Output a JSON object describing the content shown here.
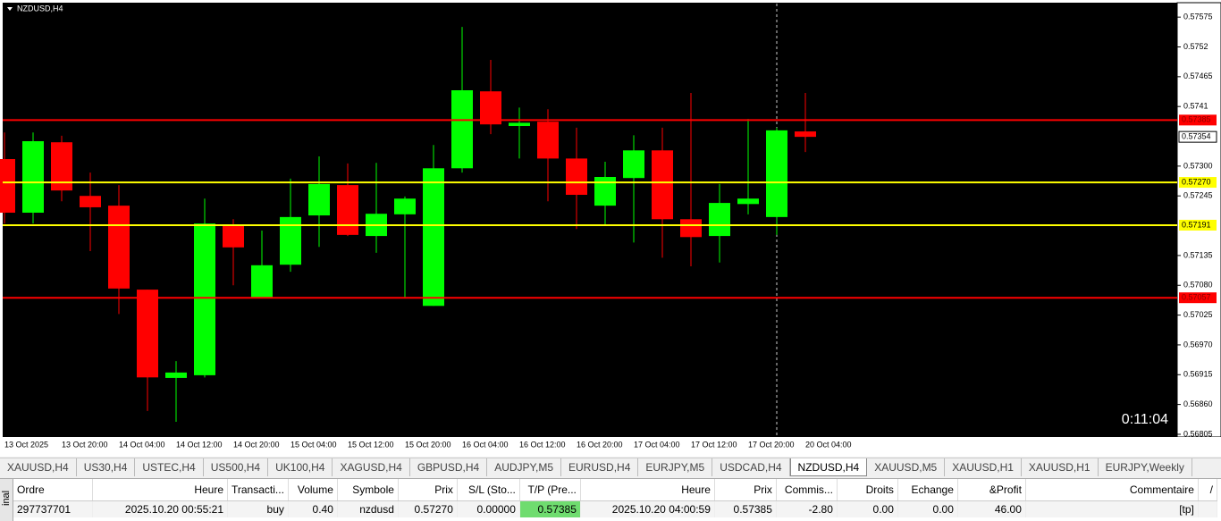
{
  "chart_data": {
    "type": "candlestick",
    "title": "NZDUSD,H4",
    "x": [
      "13 Oct 2025",
      null,
      "13 Oct 20:00",
      null,
      "14 Oct 04:00",
      null,
      "14 Oct 12:00",
      null,
      "14 Oct 20:00",
      null,
      "15 Oct 04:00",
      null,
      "15 Oct 12:00",
      null,
      "15 Oct 20:00",
      null,
      "16 Oct 04:00",
      null,
      "16 Oct 12:00",
      null,
      "16 Oct 20:00",
      null,
      "17 Oct 04:00",
      null,
      "17 Oct 12:00",
      null,
      "17 Oct 20:00",
      null,
      "20 Oct 04:00"
    ],
    "open": [
      0.57313,
      0.57214,
      0.57344,
      0.57245,
      0.57227,
      0.57072,
      0.56909,
      0.56914,
      0.57192,
      0.57056,
      0.57118,
      0.57209,
      0.57265,
      0.57171,
      0.57211,
      0.57042,
      0.57296,
      0.57438,
      0.57374,
      0.57382,
      0.57314,
      0.57227,
      0.57278,
      0.57329,
      0.57202,
      0.57171,
      0.5723,
      0.57206,
      0.57364
    ],
    "high": [
      0.57362,
      0.57362,
      0.57356,
      0.57288,
      0.57265,
      0.57072,
      0.5694,
      0.5724,
      0.57202,
      0.57181,
      0.57277,
      0.57318,
      0.57305,
      0.57306,
      0.57244,
      0.57339,
      0.57557,
      0.57496,
      0.57408,
      0.57405,
      0.57371,
      0.57308,
      0.57357,
      0.57371,
      0.57435,
      0.57267,
      0.57387,
      0.57371,
      0.57435
    ],
    "low": [
      0.57194,
      0.57194,
      0.57235,
      0.57143,
      0.57027,
      0.56848,
      0.56828,
      0.5691,
      0.5708,
      0.57056,
      0.57105,
      0.57151,
      0.57171,
      0.5714,
      0.57057,
      0.57042,
      0.57288,
      0.57359,
      0.57314,
      0.57235,
      0.57184,
      0.57191,
      0.57159,
      0.57131,
      0.57115,
      0.57122,
      0.57211,
      0.57173,
      0.57326
    ],
    "close": [
      0.57214,
      0.57346,
      0.57255,
      0.57224,
      0.57074,
      0.5691,
      0.56919,
      0.57194,
      0.5715,
      0.57117,
      0.57206,
      0.57267,
      0.57173,
      0.57212,
      0.5724,
      0.57296,
      0.5744,
      0.57377,
      0.5738,
      0.57314,
      0.57247,
      0.5728,
      0.57329,
      0.57202,
      0.57169,
      0.57232,
      0.5724,
      0.57366,
      0.57354
    ],
    "up_color": "#00ff00",
    "down_color": "#ff0000",
    "ylim": [
      0.568,
      0.576
    ],
    "yticks": [
      0.57575,
      0.5752,
      0.57465,
      0.5741,
      {
        "value": 0.573,
        "label": "0.57300"
      },
      0.57245,
      0.57135,
      {
        "value": 0.5708,
        "label": "0.57080"
      },
      0.57025,
      {
        "value": 0.5697,
        "label": "0.56970"
      },
      0.56915,
      {
        "value": 0.5686,
        "label": "0.56860"
      },
      0.56805
    ],
    "levels": [
      {
        "value": 0.57385,
        "label": "0.57385",
        "color": "#ff0000"
      },
      {
        "value": 0.5727,
        "label": "0.57270",
        "color": "#ffff00"
      },
      {
        "value": 0.57191,
        "label": "0.57191",
        "color": "#ffff00"
      },
      {
        "value": 0.57057,
        "label": "0.57057",
        "color": "#ff0000"
      }
    ],
    "bid": 0.57354,
    "timer": "0:11:04"
  },
  "tabs": [
    "XAUUSD,H4",
    "US30,H4",
    "USTEC,H4",
    "US500,H4",
    "UK100,H4",
    "XAGUSD,H4",
    "GBPUSD,H4",
    "AUDJPY,M5",
    "EURUSD,H4",
    "EURJPY,M5",
    "USDCAD,H4",
    "NZDUSD,H4",
    "XAUUSD,M5",
    "XAUUSD,H1",
    "XAUUSD,H1",
    "EURJPY,Weekly"
  ],
  "active_tab": 11,
  "side_label": "inal",
  "table": {
    "columns": [
      "Ordre",
      "Heure",
      "Transacti...",
      "Volume",
      "Symbole",
      "Prix",
      "S/L (Sto...",
      "T/P (Pre...",
      "Heure",
      "Prix",
      "Commis...",
      "Droits",
      "Echange",
      "&Profit",
      "Commentaire",
      "/"
    ],
    "rows": [
      [
        "297737701",
        "2025.10.20 00:55:21",
        "buy",
        "0.40",
        "nzdusd",
        "0.57270",
        "0.00000",
        "0.57385",
        "2025.10.20 04:00:59",
        "0.57385",
        "-2.80",
        "0.00",
        "0.00",
        "46.00",
        "[tp]",
        ""
      ]
    ]
  }
}
